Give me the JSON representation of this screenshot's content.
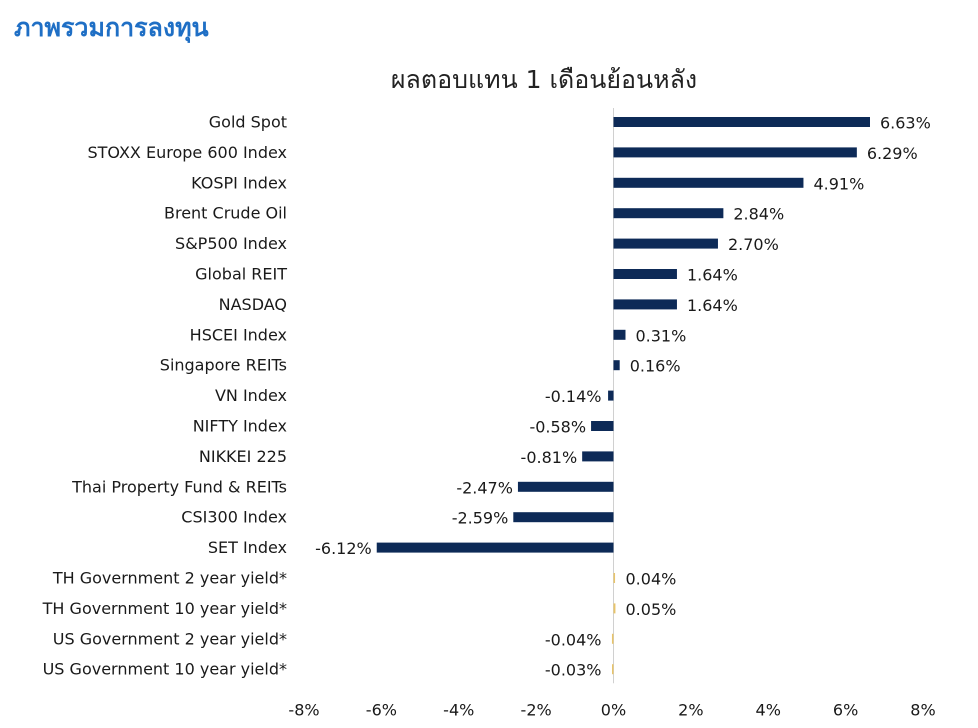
{
  "header": {
    "title": "ภาพรวมการลงทุน"
  },
  "chart_data": {
    "type": "bar",
    "orientation": "horizontal",
    "title": "ผลตอบแทน 1 เดือนย้อนหลัง",
    "xlabel": "",
    "ylabel": "",
    "xlim": [
      -8,
      8
    ],
    "x_ticks": [
      "-8%",
      "-6%",
      "-4%",
      "-2%",
      "0%",
      "2%",
      "4%",
      "6%",
      "8%"
    ],
    "x_tick_values": [
      -8,
      -6,
      -4,
      -2,
      0,
      2,
      4,
      6,
      8
    ],
    "grid": false,
    "categories": [
      "Gold Spot",
      "STOXX Europe 600 Index",
      "KOSPI Index",
      "Brent Crude Oil",
      "S&P500 Index",
      "Global REIT",
      "NASDAQ",
      "HSCEI Index",
      "Singapore REITs",
      "VN Index",
      "NIFTY Index",
      "NIKKEI 225",
      "Thai Property Fund & REITs",
      "CSI300 Index",
      "SET Index",
      "TH Government 2 year yield*",
      "TH Government 10 year yield*",
      "US Government 2 year yield*",
      "US Government 10 year yield*"
    ],
    "values": [
      6.63,
      6.29,
      4.91,
      2.84,
      2.7,
      1.64,
      1.64,
      0.31,
      0.16,
      -0.14,
      -0.58,
      -0.81,
      -2.47,
      -2.59,
      -6.12,
      0.04,
      0.05,
      -0.04,
      -0.03
    ],
    "value_labels": [
      "6.63%",
      "6.29%",
      "4.91%",
      "2.84%",
      "2.70%",
      "1.64%",
      "1.64%",
      "0.31%",
      "0.16%",
      "-0.14%",
      "-0.58%",
      "-0.81%",
      "-2.47%",
      "-2.59%",
      "-6.12%",
      "0.04%",
      "0.05%",
      "-0.04%",
      "-0.03%"
    ],
    "bar_colors": [
      "#0d2a57",
      "#0d2a57",
      "#0d2a57",
      "#0d2a57",
      "#0d2a57",
      "#0d2a57",
      "#0d2a57",
      "#0d2a57",
      "#0d2a57",
      "#0d2a57",
      "#0d2a57",
      "#0d2a57",
      "#0d2a57",
      "#0d2a57",
      "#0d2a57",
      "#e8c46a",
      "#e8c46a",
      "#e8c46a",
      "#e8c46a"
    ],
    "axis_color": "#d0d0d0"
  }
}
